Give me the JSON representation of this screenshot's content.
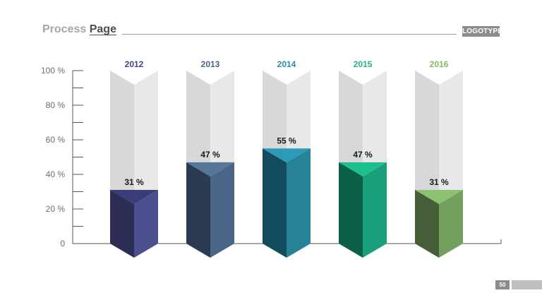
{
  "header": {
    "title_part1": "Process",
    "title_part2": "Page",
    "logo": "LOGOTYPE"
  },
  "footer": {
    "page_number": "50"
  },
  "chart_data": {
    "type": "bar",
    "categories": [
      "2012",
      "2013",
      "2014",
      "2015",
      "2016"
    ],
    "values": [
      31,
      47,
      55,
      47,
      31
    ],
    "value_labels": [
      "31 %",
      "47 %",
      "55 %",
      "47 %",
      "31 %"
    ],
    "ylim": [
      0,
      100
    ],
    "yticks": [
      0,
      20,
      40,
      60,
      80,
      100
    ],
    "ytick_labels": [
      "0",
      "20 %",
      "40 %",
      "60 %",
      "80 %",
      "100 %"
    ],
    "grid": false,
    "colors": {
      "front_left": [
        "#2c2c55",
        "#2b3b52",
        "#134c5c",
        "#0d6048",
        "#455e38"
      ],
      "front_right": [
        "#4a4f8e",
        "#4b6586",
        "#268397",
        "#19a07a",
        "#73a05e"
      ],
      "top": [
        "#3a3d7a",
        "#56779c",
        "#2a9bb8",
        "#1dbf8f",
        "#8cc174"
      ],
      "category_label": [
        "#3e4389",
        "#4b6586",
        "#2a8ca3",
        "#20b489",
        "#7cbd64"
      ],
      "bg_left": "#d8d8d8",
      "bg_right": "#e8e8e8",
      "bg_top": "#cdcdcd"
    }
  }
}
